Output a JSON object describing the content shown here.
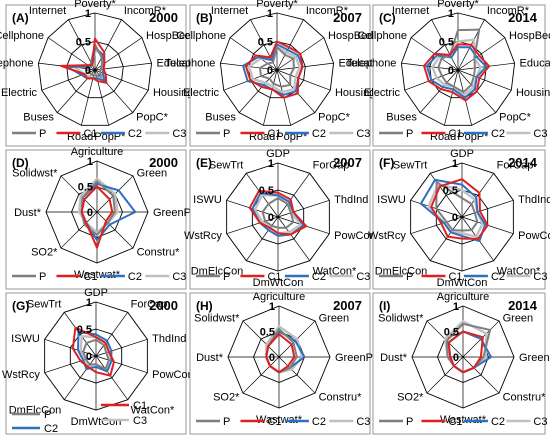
{
  "colors": {
    "P": "#7f7f7f",
    "C1": "#e02020",
    "C2": "#2f6fbf",
    "C3": "#c0c0c0",
    "grid": "#000000",
    "frame": "#9a9a9a"
  },
  "legend_labels": [
    "P",
    "C1",
    "C2",
    "C3"
  ],
  "chart_data": [
    {
      "type": "radar",
      "panel_label": "(A)",
      "year": "2000",
      "range": [
        0,
        1
      ],
      "tick_labels": [
        "0",
        "0.5",
        "1"
      ],
      "axes": [
        "Poverty*",
        "IncomR*",
        "HospBed",
        "Education",
        "Housing",
        "PopC*",
        "PopP*",
        "Road",
        "Buses",
        "Electric",
        "Telephone",
        "Cellphone",
        "Internet"
      ],
      "series": [
        {
          "name": "P",
          "values": [
            0.45,
            0.25,
            0.15,
            0.1,
            0.1,
            0.15,
            0.1,
            0.1,
            0.1,
            0.1,
            0.15,
            0.1,
            0.15
          ]
        },
        {
          "name": "C1",
          "values": [
            0.55,
            0.35,
            0.2,
            0.15,
            0.2,
            0.3,
            0.2,
            0.15,
            0.2,
            0.2,
            0.6,
            0.15,
            0.1
          ]
        },
        {
          "name": "C2",
          "values": [
            0.4,
            0.3,
            0.2,
            0.15,
            0.15,
            0.25,
            0.15,
            0.15,
            0.2,
            0.25,
            0.5,
            0.1,
            0.1
          ]
        },
        {
          "name": "C3",
          "values": [
            0.35,
            0.3,
            0.2,
            0.15,
            0.15,
            0.2,
            0.15,
            0.15,
            0.15,
            0.2,
            0.35,
            0.1,
            0.1
          ]
        }
      ]
    },
    {
      "type": "radar",
      "panel_label": "(B)",
      "year": "2007",
      "range": [
        0,
        1
      ],
      "tick_labels": [
        "0",
        "0.5",
        "1"
      ],
      "axes": [
        "Poverty*",
        "IncomR*",
        "HospBed",
        "Education",
        "Housing",
        "PopC*",
        "PopP*",
        "Road",
        "Buses",
        "Electric",
        "Telephone",
        "Cellphone",
        "Internet"
      ],
      "series": [
        {
          "name": "P",
          "values": [
            0.4,
            0.3,
            0.35,
            0.3,
            0.25,
            0.35,
            0.3,
            0.25,
            0.2,
            0.3,
            0.3,
            0.2,
            0.15
          ]
        },
        {
          "name": "C1",
          "values": [
            0.5,
            0.45,
            0.5,
            0.45,
            0.4,
            0.55,
            0.5,
            0.35,
            0.4,
            0.5,
            0.55,
            0.45,
            0.25
          ]
        },
        {
          "name": "C2",
          "values": [
            0.45,
            0.4,
            0.45,
            0.45,
            0.4,
            0.5,
            0.45,
            0.35,
            0.35,
            0.55,
            0.6,
            0.4,
            0.2
          ]
        },
        {
          "name": "C3",
          "values": [
            0.4,
            0.35,
            0.4,
            0.4,
            0.35,
            0.45,
            0.4,
            0.3,
            0.3,
            0.45,
            0.5,
            0.35,
            0.2
          ]
        }
      ]
    },
    {
      "type": "radar",
      "panel_label": "(C)",
      "year": "2014",
      "range": [
        0,
        1
      ],
      "tick_labels": [
        "0",
        "0.5",
        "1"
      ],
      "axes": [
        "Poverty*",
        "IncomR*",
        "HospBed",
        "Education",
        "Housing",
        "PopC*",
        "PopP*",
        "Road",
        "Buses",
        "Electric",
        "Telephone",
        "Cellphone",
        "Internet"
      ],
      "series": [
        {
          "name": "P",
          "values": [
            0.7,
            0.8,
            0.35,
            0.3,
            0.3,
            0.35,
            0.4,
            0.3,
            0.3,
            0.3,
            0.35,
            0.35,
            0.3
          ]
        },
        {
          "name": "C1",
          "values": [
            0.45,
            0.5,
            0.45,
            0.55,
            0.4,
            0.5,
            0.55,
            0.4,
            0.45,
            0.55,
            0.6,
            0.5,
            0.3
          ]
        },
        {
          "name": "C2",
          "values": [
            0.4,
            0.45,
            0.4,
            0.5,
            0.35,
            0.45,
            0.5,
            0.35,
            0.4,
            0.5,
            0.55,
            0.45,
            0.25
          ]
        },
        {
          "name": "C3",
          "values": [
            0.5,
            0.6,
            0.35,
            0.4,
            0.35,
            0.4,
            0.45,
            0.3,
            0.35,
            0.4,
            0.45,
            0.4,
            0.3
          ]
        }
      ]
    },
    {
      "type": "radar",
      "panel_label": "(D)",
      "year": "2000",
      "range": [
        0,
        1
      ],
      "tick_labels": [
        "0",
        "0.5",
        "1"
      ],
      "axes": [
        "Agriculture",
        "Green",
        "GreenPC",
        "Constru*",
        "Wastwat*",
        "SO2*",
        "Dust*",
        "Solidwst*"
      ],
      "series": [
        {
          "name": "P",
          "values": [
            0.6,
            0.45,
            0.35,
            0.3,
            0.45,
            0.35,
            0.3,
            0.4
          ]
        },
        {
          "name": "C1",
          "values": [
            0.5,
            0.35,
            0.3,
            0.25,
            0.7,
            0.3,
            0.3,
            0.35
          ]
        },
        {
          "name": "C2",
          "values": [
            0.55,
            0.6,
            0.75,
            0.35,
            0.55,
            0.3,
            0.3,
            0.4
          ]
        },
        {
          "name": "C3",
          "values": [
            0.65,
            0.5,
            0.4,
            0.3,
            0.4,
            0.3,
            0.35,
            0.45
          ]
        }
      ]
    },
    {
      "type": "radar",
      "panel_label": "(E)",
      "year": "2007",
      "range": [
        0,
        1
      ],
      "tick_labels": [
        "0",
        "0.5",
        "1"
      ],
      "axes": [
        "GDP",
        "ForCap",
        "ThdInd",
        "PowCon*",
        "WatCon*",
        "DmWtCon",
        "DmElcCon",
        "WstRcy",
        "ISWU",
        "SewTrt"
      ],
      "series": [
        {
          "name": "P",
          "values": [
            0.35,
            0.3,
            0.25,
            0.3,
            0.25,
            0.2,
            0.2,
            0.25,
            0.3,
            0.3
          ]
        },
        {
          "name": "C1",
          "values": [
            0.45,
            0.4,
            0.3,
            0.55,
            0.4,
            0.3,
            0.25,
            0.35,
            0.55,
            0.6
          ]
        },
        {
          "name": "C2",
          "values": [
            0.4,
            0.35,
            0.3,
            0.5,
            0.4,
            0.35,
            0.3,
            0.35,
            0.5,
            0.55
          ]
        },
        {
          "name": "C3",
          "values": [
            0.4,
            0.35,
            0.25,
            0.45,
            0.35,
            0.3,
            0.25,
            0.3,
            0.45,
            0.5
          ]
        }
      ]
    },
    {
      "type": "radar",
      "panel_label": "(F)",
      "year": "2014",
      "range": [
        0,
        1
      ],
      "tick_labels": [
        "0",
        "0.5",
        "1"
      ],
      "axes": [
        "GDP",
        "ForCap",
        "ThdInd",
        "PowCon",
        "WatCon*",
        "DmWtCon",
        "DmElcCon",
        "WstRcy",
        "ISWU",
        "SewTrt"
      ],
      "series": [
        {
          "name": "P",
          "values": [
            0.35,
            0.3,
            0.25,
            0.3,
            0.3,
            0.25,
            0.3,
            0.3,
            0.5,
            0.8
          ]
        },
        {
          "name": "C1",
          "values": [
            0.7,
            0.55,
            0.35,
            0.5,
            0.5,
            0.4,
            0.45,
            0.4,
            0.6,
            0.7
          ]
        },
        {
          "name": "C2",
          "values": [
            0.6,
            0.45,
            0.3,
            0.45,
            0.55,
            0.35,
            0.35,
            0.35,
            0.8,
            0.85
          ]
        },
        {
          "name": "C3",
          "values": [
            0.5,
            0.4,
            0.3,
            0.4,
            0.45,
            0.3,
            0.35,
            0.35,
            0.65,
            0.75
          ]
        }
      ]
    },
    {
      "type": "radar",
      "panel_label": "(G)",
      "year": "2000",
      "range": [
        0,
        1
      ],
      "tick_labels": [
        "0",
        "0.5",
        "1"
      ],
      "axes": [
        "GDP",
        "ForCap",
        "ThdInd",
        "PowCon*",
        "WatCon*",
        "DmWtCon",
        "DmElcCon",
        "WstRcy",
        "ISWU",
        "SewTrt"
      ],
      "series": [
        {
          "name": "P",
          "values": [
            0.3,
            0.25,
            0.2,
            0.25,
            0.3,
            0.15,
            0.2,
            0.2,
            0.25,
            0.3
          ]
        },
        {
          "name": "C1",
          "values": [
            0.35,
            0.3,
            0.25,
            0.35,
            0.45,
            0.3,
            0.25,
            0.3,
            0.45,
            0.65
          ]
        },
        {
          "name": "C2",
          "values": [
            0.4,
            0.35,
            0.3,
            0.3,
            0.35,
            0.2,
            0.3,
            0.25,
            0.35,
            0.55
          ]
        },
        {
          "name": "C3",
          "values": [
            0.35,
            0.3,
            0.25,
            0.3,
            0.35,
            0.2,
            0.25,
            0.25,
            0.3,
            0.45
          ]
        }
      ]
    },
    {
      "type": "radar",
      "panel_label": "(H)",
      "year": "2007",
      "range": [
        0,
        1
      ],
      "tick_labels": [
        "0",
        "0.5",
        "1"
      ],
      "axes": [
        "Agriculture",
        "Green",
        "GreenPC",
        "Constru*",
        "Wastwat*",
        "SO2*",
        "Dust*",
        "Solidwst*"
      ],
      "series": [
        {
          "name": "P",
          "values": [
            0.55,
            0.4,
            0.35,
            0.3,
            0.3,
            0.25,
            0.25,
            0.3
          ]
        },
        {
          "name": "C1",
          "values": [
            0.45,
            0.35,
            0.3,
            0.25,
            0.3,
            0.25,
            0.25,
            0.3
          ]
        },
        {
          "name": "C2",
          "values": [
            0.5,
            0.45,
            0.5,
            0.3,
            0.3,
            0.25,
            0.25,
            0.3
          ]
        },
        {
          "name": "C3",
          "values": [
            0.6,
            0.5,
            0.45,
            0.35,
            0.3,
            0.25,
            0.25,
            0.35
          ]
        }
      ]
    },
    {
      "type": "radar",
      "panel_label": "(I)",
      "year": "2014",
      "range": [
        0,
        1
      ],
      "tick_labels": [
        "0",
        "0.5",
        "1"
      ],
      "axes": [
        "Agriculture",
        "Green",
        "GreenPC",
        "Constru*",
        "Wastwat*",
        "SO2*",
        "Dust*",
        "Solidwst*"
      ],
      "series": [
        {
          "name": "P",
          "values": [
            0.65,
            0.75,
            0.4,
            0.3,
            0.3,
            0.25,
            0.3,
            0.45
          ]
        },
        {
          "name": "C1",
          "values": [
            0.5,
            0.55,
            0.35,
            0.3,
            0.3,
            0.25,
            0.25,
            0.4
          ]
        },
        {
          "name": "C2",
          "values": [
            0.5,
            0.5,
            0.55,
            0.3,
            0.3,
            0.25,
            0.25,
            0.4
          ]
        },
        {
          "name": "C3",
          "values": [
            0.7,
            0.65,
            0.45,
            0.3,
            0.3,
            0.25,
            0.3,
            0.5
          ]
        }
      ]
    }
  ]
}
